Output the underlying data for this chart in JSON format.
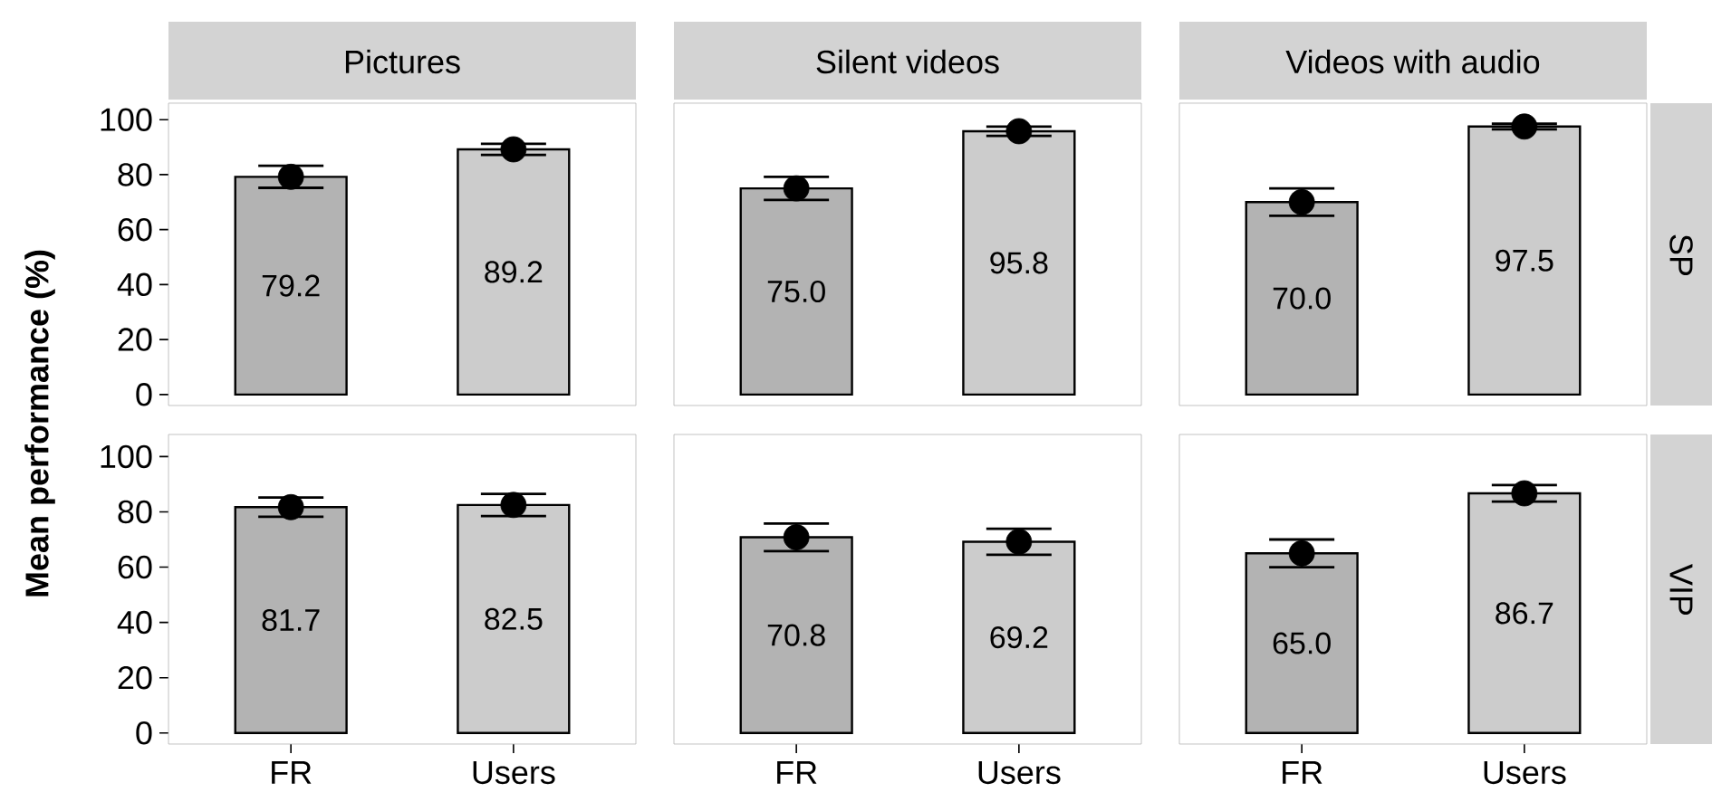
{
  "chart_data": [
    {
      "type": "bar",
      "title": "Pictures",
      "ylabel": "Mean performance (%)",
      "categories": [
        "FR",
        "Users"
      ],
      "ylim": [
        -4,
        106
      ],
      "yticks": [
        0,
        20,
        40,
        60,
        80,
        100
      ],
      "tick_labels": "y",
      "series": [
        {
          "type": "bar",
          "colors": [
            "#b3b3b3",
            "#cccccc"
          ],
          "values": [
            79.2,
            89.2
          ],
          "errors": [
            4,
            2
          ],
          "value_labels": [
            "79.2",
            "89.2"
          ]
        },
        {
          "type": "scatter",
          "x": [
            "FR",
            "Users"
          ],
          "values": [
            79.2,
            89.2
          ],
          "color": "#000000",
          "marker": "circle"
        }
      ]
    },
    {
      "type": "bar",
      "title": "Silent videos",
      "categories": [
        "FR",
        "Users"
      ],
      "ylim": [
        -4,
        106
      ],
      "tick_labels": false,
      "series": [
        {
          "type": "bar",
          "colors": [
            "#b3b3b3",
            "#cccccc"
          ],
          "values": [
            75.0,
            95.8
          ],
          "errors": [
            4.2,
            1.7
          ],
          "value_labels": [
            "75.0",
            "95.8"
          ]
        },
        {
          "type": "scatter",
          "x": [
            "FR",
            "Users"
          ],
          "values": [
            75.0,
            95.8
          ],
          "color": "#000000",
          "marker": "circle"
        }
      ]
    },
    {
      "type": "bar",
      "title": "Videos with audio",
      "y2label": "SP",
      "categories": [
        "FR",
        "Users"
      ],
      "ylim": [
        -4,
        106
      ],
      "tick_labels": false,
      "series": [
        {
          "type": "bar",
          "colors": [
            "#b3b3b3",
            "#cccccc"
          ],
          "values": [
            70.0,
            97.5
          ],
          "errors": [
            5,
            1
          ],
          "value_labels": [
            "70.0",
            "97.5"
          ]
        },
        {
          "type": "scatter",
          "x": [
            "FR",
            "Users"
          ],
          "values": [
            70.0,
            97.5
          ],
          "color": "#000000",
          "marker": "circle"
        }
      ]
    },
    {
      "type": "bar",
      "categories": [
        "FR",
        "Users"
      ],
      "ylim": [
        -4,
        108
      ],
      "yticks": [
        0,
        20,
        40,
        60,
        80,
        100
      ],
      "series": [
        {
          "type": "bar",
          "colors": [
            "#b3b3b3",
            "#cccccc"
          ],
          "values": [
            81.7,
            82.5
          ],
          "errors": [
            3.5,
            4
          ],
          "value_labels": [
            "81.7",
            "82.5"
          ]
        },
        {
          "type": "scatter",
          "x": [
            "FR",
            "Users"
          ],
          "values": [
            81.7,
            82.5
          ],
          "color": "#000000",
          "marker": "circle"
        }
      ]
    },
    {
      "type": "bar",
      "categories": [
        "FR",
        "Users"
      ],
      "ylim": [
        -4,
        108
      ],
      "tick_labels": "x",
      "series": [
        {
          "type": "bar",
          "colors": [
            "#b3b3b3",
            "#cccccc"
          ],
          "values": [
            70.8,
            69.2
          ],
          "errors": [
            5,
            4.7
          ],
          "value_labels": [
            "70.8",
            "69.2"
          ]
        },
        {
          "type": "scatter",
          "x": [
            "FR",
            "Users"
          ],
          "values": [
            70.8,
            69.2
          ],
          "color": "#000000",
          "marker": "circle"
        }
      ]
    },
    {
      "type": "bar",
      "y2label": "VIP",
      "categories": [
        "FR",
        "Users"
      ],
      "ylim": [
        -4,
        108
      ],
      "tick_labels": "x",
      "series": [
        {
          "type": "bar",
          "colors": [
            "#b3b3b3",
            "#cccccc"
          ],
          "values": [
            65.0,
            86.7
          ],
          "errors": [
            5,
            3
          ],
          "value_labels": [
            "65.0",
            "86.7"
          ]
        },
        {
          "type": "scatter",
          "x": [
            "FR",
            "Users"
          ],
          "values": [
            65.0,
            86.7
          ],
          "color": "#000000",
          "marker": "circle"
        }
      ]
    }
  ]
}
